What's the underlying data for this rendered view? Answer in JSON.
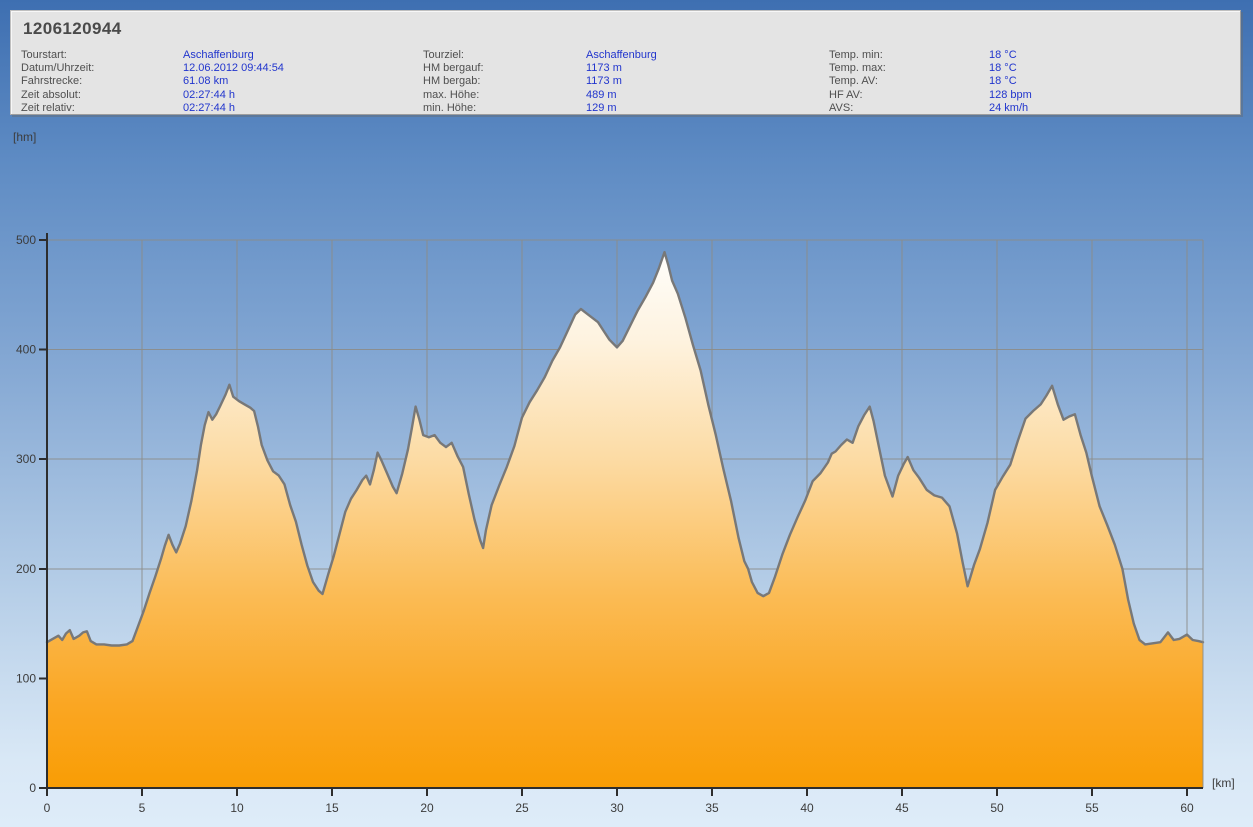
{
  "header": {
    "title": "1206120944",
    "columns": [
      {
        "rows": [
          {
            "label": "Tourstart:",
            "value": "Aschaffenburg"
          },
          {
            "label": "Datum/Uhrzeit:",
            "value": "12.06.2012 09:44:54"
          },
          {
            "label": "Fahrstrecke:",
            "value": "61.08 km"
          },
          {
            "label": "Zeit absolut:",
            "value": "02:27:44 h"
          },
          {
            "label": "Zeit relativ:",
            "value": "02:27:44 h"
          }
        ]
      },
      {
        "rows": [
          {
            "label": "Tourziel:",
            "value": "Aschaffenburg"
          },
          {
            "label": "HM bergauf:",
            "value": "1173 m"
          },
          {
            "label": "HM bergab:",
            "value": "1173 m"
          },
          {
            "label": "max. Höhe:",
            "value": "489 m"
          },
          {
            "label": "min. Höhe:",
            "value": "129 m"
          }
        ]
      },
      {
        "rows": [
          {
            "label": "Temp. min:",
            "value": "18 °C"
          },
          {
            "label": "Temp. max:",
            "value": "18 °C"
          },
          {
            "label": "Temp. AV:",
            "value": "18 °C"
          },
          {
            "label": "HF AV:",
            "value": "128 bpm"
          },
          {
            "label": "AVS:",
            "value": "24 km/h"
          }
        ]
      }
    ]
  },
  "chart_data": {
    "type": "area",
    "title": "",
    "xlabel": "[km]",
    "ylabel": "[hm]",
    "xlim": [
      0,
      60.84
    ],
    "ylim": [
      0,
      500
    ],
    "x_ticks": [
      0,
      5,
      10,
      15,
      20,
      25,
      30,
      35,
      40,
      45,
      50,
      55,
      60
    ],
    "y_ticks": [
      0,
      100,
      200,
      300,
      400,
      500
    ],
    "grid": true,
    "colors": {
      "fill_top": "#ffffff",
      "fill_bottom": "#f99d04",
      "line": "#787878",
      "grid": "#8c8c88",
      "axis": "#2d2d2d",
      "background_top": "#3e6fb1",
      "background_bottom": "#deecf9",
      "value_text": "#2135cd"
    },
    "series": [
      {
        "name": "elevation-profile",
        "x_unit": "km",
        "y_unit": "m",
        "points": [
          [
            0,
            133
          ],
          [
            0.3,
            136
          ],
          [
            0.6,
            139
          ],
          [
            0.8,
            135
          ],
          [
            1.0,
            141
          ],
          [
            1.2,
            144
          ],
          [
            1.4,
            136
          ],
          [
            1.7,
            139
          ],
          [
            1.9,
            142
          ],
          [
            2.1,
            143
          ],
          [
            2.3,
            134
          ],
          [
            2.6,
            131
          ],
          [
            3.0,
            131
          ],
          [
            3.4,
            130
          ],
          [
            3.8,
            130
          ],
          [
            4.2,
            131
          ],
          [
            4.5,
            134
          ],
          [
            4.8,
            148
          ],
          [
            5.1,
            162
          ],
          [
            5.4,
            178
          ],
          [
            5.7,
            193
          ],
          [
            6.0,
            209
          ],
          [
            6.2,
            221
          ],
          [
            6.4,
            231
          ],
          [
            6.6,
            222
          ],
          [
            6.8,
            215
          ],
          [
            7.0,
            223
          ],
          [
            7.3,
            239
          ],
          [
            7.6,
            262
          ],
          [
            7.9,
            290
          ],
          [
            8.1,
            313
          ],
          [
            8.3,
            331
          ],
          [
            8.5,
            343
          ],
          [
            8.7,
            336
          ],
          [
            8.9,
            341
          ],
          [
            9.1,
            348
          ],
          [
            9.4,
            359
          ],
          [
            9.6,
            368
          ],
          [
            9.8,
            357
          ],
          [
            10.1,
            353
          ],
          [
            10.4,
            350
          ],
          [
            10.7,
            347
          ],
          [
            10.9,
            344
          ],
          [
            11.1,
            330
          ],
          [
            11.3,
            313
          ],
          [
            11.6,
            299
          ],
          [
            11.9,
            289
          ],
          [
            12.2,
            285
          ],
          [
            12.5,
            277
          ],
          [
            12.8,
            258
          ],
          [
            13.1,
            243
          ],
          [
            13.4,
            222
          ],
          [
            13.7,
            203
          ],
          [
            14.0,
            188
          ],
          [
            14.3,
            180
          ],
          [
            14.5,
            177
          ],
          [
            14.8,
            195
          ],
          [
            15.1,
            212
          ],
          [
            15.4,
            232
          ],
          [
            15.7,
            252
          ],
          [
            16.0,
            264
          ],
          [
            16.3,
            272
          ],
          [
            16.6,
            281
          ],
          [
            16.8,
            285
          ],
          [
            17.0,
            277
          ],
          [
            17.2,
            290
          ],
          [
            17.4,
            306
          ],
          [
            17.6,
            299
          ],
          [
            17.9,
            287
          ],
          [
            18.2,
            275
          ],
          [
            18.4,
            269
          ],
          [
            18.7,
            287
          ],
          [
            19.0,
            309
          ],
          [
            19.2,
            328
          ],
          [
            19.4,
            348
          ],
          [
            19.6,
            336
          ],
          [
            19.8,
            322
          ],
          [
            20.1,
            320
          ],
          [
            20.4,
            322
          ],
          [
            20.7,
            315
          ],
          [
            21.0,
            311
          ],
          [
            21.3,
            315
          ],
          [
            21.6,
            303
          ],
          [
            21.9,
            293
          ],
          [
            22.2,
            268
          ],
          [
            22.5,
            245
          ],
          [
            22.8,
            226
          ],
          [
            22.95,
            219
          ],
          [
            23.1,
            235
          ],
          [
            23.4,
            258
          ],
          [
            23.8,
            276
          ],
          [
            24.2,
            293
          ],
          [
            24.6,
            312
          ],
          [
            25.0,
            338
          ],
          [
            25.4,
            352
          ],
          [
            25.8,
            363
          ],
          [
            26.2,
            375
          ],
          [
            26.6,
            390
          ],
          [
            27.0,
            402
          ],
          [
            27.4,
            417
          ],
          [
            27.8,
            432
          ],
          [
            28.1,
            437
          ],
          [
            28.4,
            433
          ],
          [
            28.7,
            429
          ],
          [
            29.0,
            425
          ],
          [
            29.3,
            417
          ],
          [
            29.6,
            409
          ],
          [
            30.0,
            402
          ],
          [
            30.3,
            408
          ],
          [
            30.7,
            422
          ],
          [
            31.1,
            436
          ],
          [
            31.5,
            448
          ],
          [
            31.9,
            461
          ],
          [
            32.2,
            474
          ],
          [
            32.5,
            489
          ],
          [
            32.7,
            477
          ],
          [
            32.9,
            463
          ],
          [
            33.2,
            451
          ],
          [
            33.6,
            429
          ],
          [
            34.0,
            404
          ],
          [
            34.4,
            381
          ],
          [
            34.8,
            350
          ],
          [
            35.2,
            322
          ],
          [
            35.6,
            291
          ],
          [
            36.0,
            262
          ],
          [
            36.4,
            228
          ],
          [
            36.7,
            207
          ],
          [
            36.9,
            200
          ],
          [
            37.1,
            188
          ],
          [
            37.4,
            178
          ],
          [
            37.7,
            175
          ],
          [
            38.0,
            178
          ],
          [
            38.3,
            192
          ],
          [
            38.7,
            213
          ],
          [
            39.1,
            231
          ],
          [
            39.5,
            247
          ],
          [
            39.9,
            262
          ],
          [
            40.3,
            280
          ],
          [
            40.7,
            287
          ],
          [
            41.1,
            297
          ],
          [
            41.3,
            305
          ],
          [
            41.5,
            307
          ],
          [
            41.8,
            313
          ],
          [
            42.1,
            318
          ],
          [
            42.4,
            315
          ],
          [
            42.7,
            330
          ],
          [
            43.0,
            340
          ],
          [
            43.3,
            348
          ],
          [
            43.5,
            335
          ],
          [
            43.8,
            310
          ],
          [
            44.1,
            285
          ],
          [
            44.5,
            266
          ],
          [
            44.8,
            285
          ],
          [
            45.1,
            296
          ],
          [
            45.3,
            302
          ],
          [
            45.6,
            290
          ],
          [
            45.9,
            283
          ],
          [
            46.3,
            272
          ],
          [
            46.7,
            267
          ],
          [
            47.1,
            265
          ],
          [
            47.5,
            257
          ],
          [
            47.9,
            232
          ],
          [
            48.2,
            205
          ],
          [
            48.45,
            184
          ],
          [
            48.8,
            204
          ],
          [
            49.1,
            218
          ],
          [
            49.5,
            242
          ],
          [
            49.9,
            272
          ],
          [
            50.3,
            284
          ],
          [
            50.7,
            295
          ],
          [
            51.1,
            317
          ],
          [
            51.5,
            337
          ],
          [
            51.9,
            344
          ],
          [
            52.3,
            350
          ],
          [
            52.6,
            358
          ],
          [
            52.9,
            367
          ],
          [
            53.2,
            350
          ],
          [
            53.5,
            336
          ],
          [
            53.8,
            339
          ],
          [
            54.1,
            341
          ],
          [
            54.4,
            322
          ],
          [
            54.7,
            306
          ],
          [
            55.0,
            284
          ],
          [
            55.4,
            257
          ],
          [
            55.8,
            240
          ],
          [
            56.2,
            222
          ],
          [
            56.6,
            200
          ],
          [
            56.9,
            172
          ],
          [
            57.2,
            150
          ],
          [
            57.5,
            135
          ],
          [
            57.8,
            131
          ],
          [
            58.2,
            132
          ],
          [
            58.6,
            133
          ],
          [
            59.0,
            142
          ],
          [
            59.3,
            135
          ],
          [
            59.6,
            136
          ],
          [
            60.0,
            140
          ],
          [
            60.3,
            135
          ],
          [
            60.6,
            134
          ],
          [
            60.84,
            133
          ]
        ]
      }
    ]
  }
}
